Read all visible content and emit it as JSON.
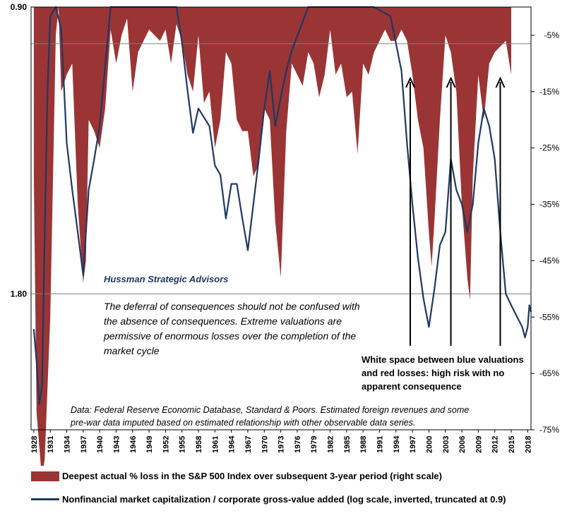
{
  "colors": {
    "losses": "#9b3434",
    "valuation": "#1f3864",
    "frame": "#000000",
    "gridline": "#808080"
  },
  "chart_data": {
    "type": "area",
    "left_axis": {
      "description": "Nonfinancial market capitalization / corporate gross-value added (log scale, inverted, truncated at 0.9)",
      "scale": "log",
      "inverted": true,
      "tick_labels": [
        "0.90",
        "1.80"
      ]
    },
    "right_axis": {
      "range": [
        -0.75,
        0
      ],
      "tick_labels": [
        "-5%",
        "-15%",
        "-25%",
        "-35%",
        "-45%",
        "-55%",
        "-65%",
        "-75%"
      ],
      "tick_values": [
        -0.05,
        -0.15,
        -0.25,
        -0.35,
        -0.45,
        -0.55,
        -0.65,
        -0.75
      ]
    },
    "x_axis": {
      "range": [
        1927.5,
        2018.6
      ],
      "tick_labels": [
        "1928",
        "1931",
        "1934",
        "1937",
        "1940",
        "1943",
        "1946",
        "1949",
        "1952",
        "1955",
        "1958",
        "1961",
        "1964",
        "1967",
        "1970",
        "1973",
        "1976",
        "1979",
        "1982",
        "1985",
        "1988",
        "1991",
        "1994",
        "1997",
        "2000",
        "2003",
        "2006",
        "2009",
        "2012",
        "2015",
        "2018"
      ]
    },
    "series": [
      {
        "name": "Deepest actual % loss in the S&P 500 Index over subsequent 3-year period (right scale)",
        "type": "area",
        "x": [
          1928,
          1928.5,
          1929,
          1929.5,
          1930,
          1931,
          1932,
          1932.5,
          1933,
          1934,
          1935,
          1936,
          1937,
          1937.5,
          1938,
          1939,
          1940,
          1941,
          1942,
          1943,
          1944,
          1945,
          1946,
          1947,
          1948,
          1949,
          1950,
          1951,
          1952,
          1953,
          1954,
          1955,
          1956,
          1957,
          1958,
          1959,
          1960,
          1961,
          1962,
          1963,
          1964,
          1965,
          1966,
          1967,
          1968,
          1969,
          1970,
          1971,
          1972,
          1973,
          1974,
          1975,
          1976,
          1977,
          1978,
          1979,
          1980,
          1981,
          1982,
          1983,
          1984,
          1985,
          1986,
          1987,
          1988,
          1989,
          1990,
          1991,
          1992,
          1993,
          1994,
          1995,
          1996,
          1997,
          1998,
          1999,
          2000,
          2000.5,
          2001,
          2002,
          2003,
          2004,
          2005,
          2006,
          2007,
          2007.5,
          2008,
          2009,
          2010,
          2011,
          2012,
          2013,
          2014,
          2015
        ],
        "values": [
          -0.3,
          -0.72,
          -0.78,
          -0.84,
          -0.8,
          -0.55,
          -0.05,
          0,
          -0.15,
          -0.12,
          -0.1,
          -0.35,
          -0.49,
          -0.45,
          -0.2,
          -0.22,
          -0.25,
          -0.18,
          -0.04,
          -0.1,
          -0.05,
          -0.02,
          -0.15,
          -0.08,
          -0.06,
          -0.04,
          -0.05,
          -0.06,
          -0.04,
          -0.1,
          -0.03,
          -0.06,
          -0.12,
          -0.15,
          -0.05,
          -0.17,
          -0.15,
          -0.25,
          -0.2,
          -0.08,
          -0.1,
          -0.2,
          -0.22,
          -0.22,
          -0.3,
          -0.28,
          -0.18,
          -0.2,
          -0.38,
          -0.48,
          -0.22,
          -0.1,
          -0.12,
          -0.14,
          -0.08,
          -0.1,
          -0.16,
          -0.12,
          -0.04,
          -0.12,
          -0.1,
          -0.16,
          -0.15,
          -0.26,
          -0.1,
          -0.12,
          -0.08,
          -0.06,
          -0.04,
          -0.06,
          -0.06,
          -0.04,
          -0.06,
          -0.12,
          -0.2,
          -0.25,
          -0.4,
          -0.46,
          -0.38,
          -0.2,
          -0.05,
          -0.08,
          -0.15,
          -0.35,
          -0.48,
          -0.52,
          -0.3,
          -0.12,
          -0.2,
          -0.1,
          -0.08,
          -0.07,
          -0.06,
          -0.12
        ]
      },
      {
        "name": "Nonfinancial market capitalization / corporate gross-value added (log scale, inverted, truncated at 0.9)",
        "type": "line",
        "x": [
          1928,
          1928.5,
          1929,
          1929.5,
          1930,
          1930.5,
          1931,
          1932,
          1933,
          1934,
          1935,
          1936,
          1937,
          1938,
          1939,
          1940,
          1942,
          1945,
          1948,
          1950,
          1952,
          1954,
          1955,
          1956,
          1957,
          1958,
          1960,
          1961,
          1962,
          1963,
          1964,
          1965,
          1966,
          1967,
          1968,
          1969,
          1970,
          1971,
          1972,
          1973,
          1974,
          1975,
          1978,
          1980,
          1985,
          1990,
          1993,
          1995,
          1996,
          1997,
          1998,
          1999,
          2000,
          2001,
          2002,
          2003,
          2004,
          2005,
          2006,
          2007,
          2008,
          2009,
          2010,
          2011,
          2012,
          2013,
          2014,
          2015,
          2016,
          2017,
          2017.5,
          2018,
          2018.3,
          2018.6
        ],
        "values": [
          1.96,
          2.12,
          2.35,
          2.25,
          1.55,
          1.1,
          0.92,
          0.9,
          0.95,
          1.25,
          1.4,
          1.55,
          1.72,
          1.4,
          1.3,
          1.2,
          0.9,
          0.9,
          0.9,
          0.9,
          0.9,
          0.9,
          0.98,
          1.1,
          1.22,
          1.15,
          1.2,
          1.32,
          1.35,
          1.5,
          1.38,
          1.38,
          1.5,
          1.62,
          1.45,
          1.3,
          1.15,
          1.05,
          1.2,
          1.12,
          1.05,
          1.0,
          0.9,
          0.9,
          0.9,
          0.9,
          0.92,
          1.05,
          1.25,
          1.45,
          1.65,
          1.82,
          1.95,
          1.78,
          1.6,
          1.55,
          1.3,
          1.4,
          1.45,
          1.55,
          1.45,
          1.25,
          1.15,
          1.2,
          1.3,
          1.55,
          1.8,
          1.85,
          1.9,
          1.95,
          2.0,
          1.95,
          1.85,
          1.88
        ]
      }
    ]
  },
  "annotations": {
    "firm": "Hussman Strategic Advisors",
    "note": "The deferral of consequences should not be confused with the absence of consequences. Extreme valuations are permissive of enormous losses over the completion of the market cycle",
    "callout": "White space between blue valuations and red losses: high risk with no apparent consequence",
    "source": "Data: Federal Reserve Economic Database, Standard & Poors. Estimated foreign revenues  and some pre-war data imputed based on estimated relationship with other observable data series.",
    "arrow_years": [
      1996.6,
      2004.0,
      2013.0
    ]
  },
  "legend": {
    "losses_label": "Deepest actual % loss in the S&P 500 Index over subsequent 3-year period (right scale)",
    "valuation_label": "Nonfinancial market capitalization / corporate gross-value added (log scale, inverted, truncated at 0.9)"
  }
}
